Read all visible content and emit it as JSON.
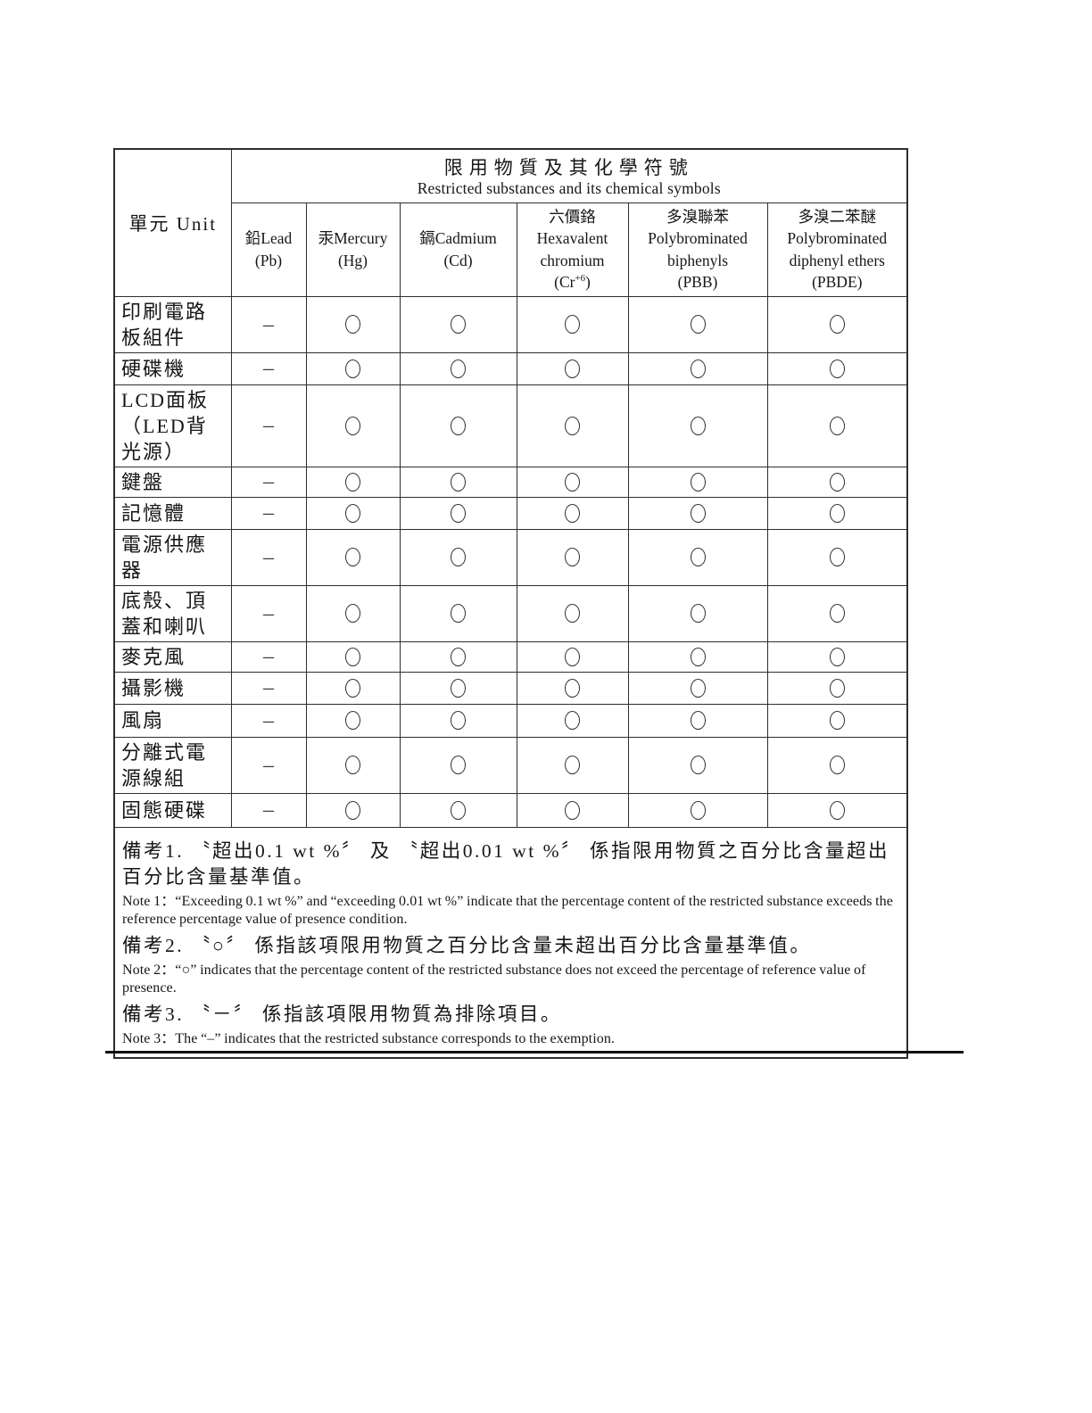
{
  "table": {
    "unit_header": "單元 Unit",
    "group_header": {
      "zh": "限用物質及其化學符號",
      "en": "Restricted substances and its chemical symbols"
    },
    "columns": [
      {
        "lines": [
          "鉛Lead",
          "(Pb)"
        ]
      },
      {
        "lines": [
          "汞Mercury",
          "(Hg)"
        ]
      },
      {
        "lines": [
          "鎘Cadmium",
          "(Cd)"
        ]
      },
      {
        "lines": [
          "六價鉻",
          "Hexavalent",
          "chromium"
        ],
        "symbol": {
          "open": "(Cr",
          "sup": "+6",
          "close": ")"
        }
      },
      {
        "lines": [
          "多溴聯苯",
          "Polybrominated",
          "biphenyls",
          "(PBB)"
        ]
      },
      {
        "lines": [
          "多溴二苯醚",
          "Polybrominated",
          "diphenyl ethers",
          "(PBDE)"
        ]
      }
    ],
    "rows": [
      {
        "label": "印刷電路板組件",
        "values": [
          "–",
          "○",
          "○",
          "○",
          "○",
          "○"
        ]
      },
      {
        "label": "硬碟機",
        "values": [
          "–",
          "○",
          "○",
          "○",
          "○",
          "○"
        ]
      },
      {
        "label": "LCD面板（LED背光源）",
        "values": [
          "–",
          "○",
          "○",
          "○",
          "○",
          "○"
        ]
      },
      {
        "label": "鍵盤",
        "values": [
          "–",
          "○",
          "○",
          "○",
          "○",
          "○"
        ]
      },
      {
        "label": "記憶體",
        "values": [
          "–",
          "○",
          "○",
          "○",
          "○",
          "○"
        ]
      },
      {
        "label": "電源供應器",
        "values": [
          "–",
          "○",
          "○",
          "○",
          "○",
          "○"
        ]
      },
      {
        "label": "底殼、頂蓋和喇叭",
        "values": [
          "–",
          "○",
          "○",
          "○",
          "○",
          "○"
        ]
      },
      {
        "label": "麥克風",
        "values": [
          "–",
          "○",
          "○",
          "○",
          "○",
          "○"
        ]
      },
      {
        "label": "攝影機",
        "values": [
          "–",
          "○",
          "○",
          "○",
          "○",
          "○"
        ]
      },
      {
        "label": "風扇",
        "values": [
          "–",
          "○",
          "○",
          "○",
          "○",
          "○"
        ]
      },
      {
        "label": "分離式電源線組",
        "values": [
          "–",
          "○",
          "○",
          "○",
          "○",
          "○"
        ]
      },
      {
        "label": "固態硬碟",
        "values": [
          "–",
          "○",
          "○",
          "○",
          "○",
          "○"
        ]
      }
    ],
    "notes": [
      {
        "zh": "備考1. 〝超出0.1 wt %〞 及 〝超出0.01 wt %〞 係指限用物質之百分比含量超出百分比含量基準值。",
        "en": "Note 1：“Exceeding 0.1 wt %” and “exceeding 0.01 wt %” indicate that the percentage content of the restricted substance exceeds the reference percentage value of presence condition."
      },
      {
        "zh": "備考2. 〝○〞 係指該項限用物質之百分比含量未超出百分比含量基準值。",
        "en": "Note 2：“○” indicates that the percentage content of the restricted substance does not exceed the percentage of reference value of presence."
      },
      {
        "zh": "備考3. 〝－〞 係指該項限用物質為排除項目。",
        "en": "Note 3：The “–” indicates that the restricted substance corresponds to the exemption."
      }
    ]
  },
  "symbols": {
    "dash": "–",
    "circle": "○"
  },
  "colors": {
    "border": "#2e2e2e",
    "text": "#161616",
    "background": "#ffffff"
  }
}
